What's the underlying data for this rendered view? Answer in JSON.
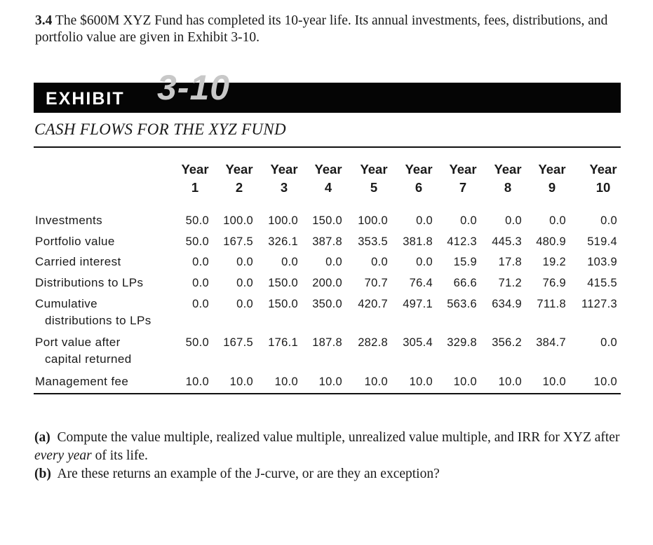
{
  "problem": {
    "number": "3.4",
    "text": "The $600M XYZ Fund has completed its 10-year life. Its annual investments, fees, distributions, and portfolio value are given in Exhibit 3-10."
  },
  "exhibit": {
    "word": "EXHIBIT",
    "number": "3-10",
    "title": "CASH FLOWS FOR THE XYZ FUND"
  },
  "table": {
    "year_word": "Year",
    "years": [
      "1",
      "2",
      "3",
      "4",
      "5",
      "6",
      "7",
      "8",
      "9",
      "10"
    ],
    "rows": [
      {
        "label": "Investments",
        "label_cont": "",
        "values": [
          "50.0",
          "100.0",
          "100.0",
          "150.0",
          "100.0",
          "0.0",
          "0.0",
          "0.0",
          "0.0",
          "0.0"
        ]
      },
      {
        "label": "Portfolio value",
        "label_cont": "",
        "values": [
          "50.0",
          "167.5",
          "326.1",
          "387.8",
          "353.5",
          "381.8",
          "412.3",
          "445.3",
          "480.9",
          "519.4"
        ]
      },
      {
        "label": "Carried interest",
        "label_cont": "",
        "values": [
          "0.0",
          "0.0",
          "0.0",
          "0.0",
          "0.0",
          "0.0",
          "15.9",
          "17.8",
          "19.2",
          "103.9"
        ]
      },
      {
        "label": "Distributions to LPs",
        "label_cont": "",
        "values": [
          "0.0",
          "0.0",
          "150.0",
          "200.0",
          "70.7",
          "76.4",
          "66.6",
          "71.2",
          "76.9",
          "415.5"
        ]
      },
      {
        "label": "Cumulative",
        "label_cont": "distributions to LPs",
        "values": [
          "0.0",
          "0.0",
          "150.0",
          "350.0",
          "420.7",
          "497.1",
          "563.6",
          "634.9",
          "711.8",
          "1127.3"
        ]
      },
      {
        "label": "Port value after",
        "label_cont": "capital returned",
        "values": [
          "50.0",
          "167.5",
          "176.1",
          "187.8",
          "282.8",
          "305.4",
          "329.8",
          "356.2",
          "384.7",
          "0.0"
        ]
      },
      {
        "label": "Management fee",
        "label_cont": "",
        "values": [
          "10.0",
          "10.0",
          "10.0",
          "10.0",
          "10.0",
          "10.0",
          "10.0",
          "10.0",
          "10.0",
          "10.0"
        ]
      }
    ]
  },
  "questions": {
    "a_label": "(a)",
    "a_text_1": "Compute the value multiple, realized value multiple, unrealized value multiple, and IRR for XYZ after ",
    "a_text_em": "every year",
    "a_text_2": " of its life.",
    "b_label": "(b)",
    "b_text": "Are these returns an example of the J-curve, or are they an exception?"
  }
}
